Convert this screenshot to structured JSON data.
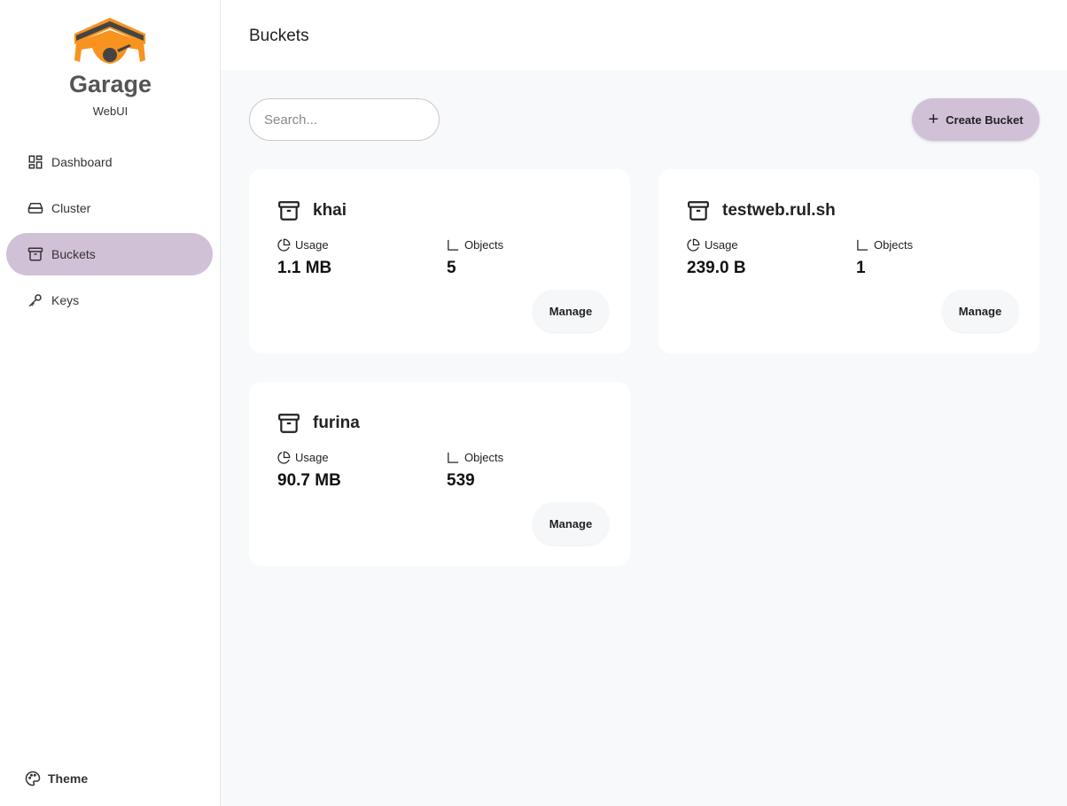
{
  "sidebar": {
    "brand": "Garage",
    "sub": "WebUI",
    "items": [
      {
        "label": "Dashboard"
      },
      {
        "label": "Cluster"
      },
      {
        "label": "Buckets"
      },
      {
        "label": "Keys"
      }
    ],
    "theme": "Theme"
  },
  "header": {
    "title": "Buckets"
  },
  "toolbar": {
    "search_placeholder": "Search...",
    "create_label": "Create Bucket"
  },
  "colors": {
    "accent": "#d1c1d7",
    "logo": "#f7931e"
  },
  "buckets": [
    {
      "name": "khai",
      "usage_label": "Usage",
      "usage": "1.1 MB",
      "objects_label": "Objects",
      "objects": "5",
      "manage": "Manage"
    },
    {
      "name": "testweb.rul.sh",
      "usage_label": "Usage",
      "usage": "239.0 B",
      "objects_label": "Objects",
      "objects": "1",
      "manage": "Manage"
    },
    {
      "name": "furina",
      "usage_label": "Usage",
      "usage": "90.7 MB",
      "objects_label": "Objects",
      "objects": "539",
      "manage": "Manage"
    }
  ]
}
